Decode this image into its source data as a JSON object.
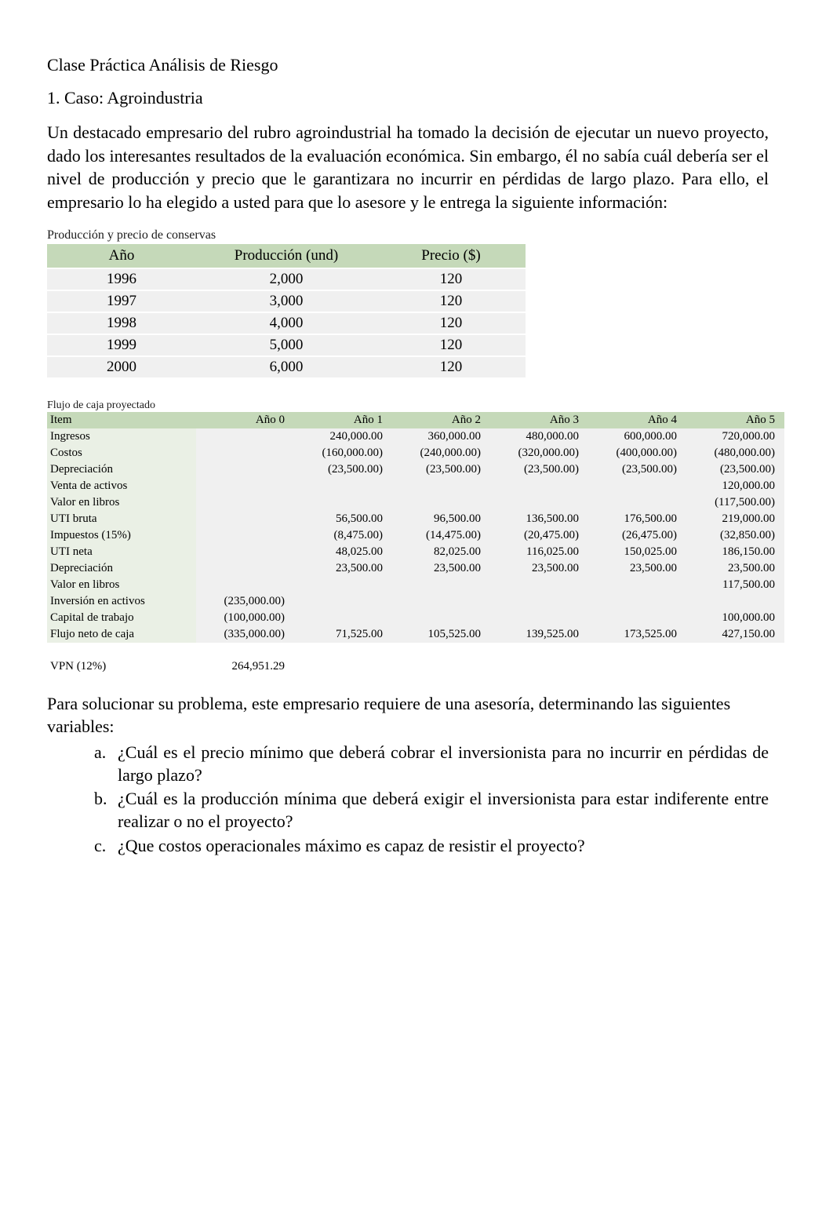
{
  "title": "Clase Práctica Análisis de Riesgo",
  "case_heading": "1. Caso: Agroindustria",
  "intro": "Un destacado empresario del rubro agroindustrial ha tomado la decisión de ejecutar un nuevo proyecto, dado los interesantes resultados de la evaluación económica. Sin embargo, él no sabía cuál debería ser el nivel de producción y precio que le garantizara no incurrir en pérdidas de largo plazo. Para ello, el empresario lo ha elegido a usted para que lo asesore y le entrega la siguiente información:",
  "prod_table": {
    "title": "Producción y precio de conservas",
    "headers": {
      "year": "Año",
      "prod": "Producción (und)",
      "price": "Precio ($)"
    },
    "rows": [
      {
        "year": "1996",
        "prod": "2,000",
        "price": "120"
      },
      {
        "year": "1997",
        "prod": "3,000",
        "price": "120"
      },
      {
        "year": "1998",
        "prod": "4,000",
        "price": "120"
      },
      {
        "year": "1999",
        "prod": "5,000",
        "price": "120"
      },
      {
        "year": "2000",
        "prod": "6,000",
        "price": "120"
      }
    ],
    "header_bg": "#c5d9b9",
    "cell_bg": "#f0f0f0"
  },
  "flow": {
    "title": "Flujo de caja proyectado",
    "headers": [
      "Item",
      "Año 0",
      "Año 1",
      "Año 2",
      "Año 3",
      "Año 4",
      "Año 5"
    ],
    "rows": [
      {
        "label": "Ingresos",
        "vals": [
          "",
          "240,000.00",
          "360,000.00",
          "480,000.00",
          "600,000.00",
          "720,000.00"
        ]
      },
      {
        "label": "Costos",
        "vals": [
          "",
          "(160,000.00)",
          "(240,000.00)",
          "(320,000.00)",
          "(400,000.00)",
          "(480,000.00)"
        ]
      },
      {
        "label": "Depreciación",
        "vals": [
          "",
          "(23,500.00)",
          "(23,500.00)",
          "(23,500.00)",
          "(23,500.00)",
          "(23,500.00)"
        ]
      },
      {
        "label": "Venta de activos",
        "vals": [
          "",
          "",
          "",
          "",
          "",
          "120,000.00"
        ]
      },
      {
        "label": "Valor en libros",
        "vals": [
          "",
          "",
          "",
          "",
          "",
          "(117,500.00)"
        ]
      },
      {
        "label": "UTI bruta",
        "vals": [
          "",
          "56,500.00",
          "96,500.00",
          "136,500.00",
          "176,500.00",
          "219,000.00"
        ]
      },
      {
        "label": "Impuestos (15%)",
        "vals": [
          "",
          "(8,475.00)",
          "(14,475.00)",
          "(20,475.00)",
          "(26,475.00)",
          "(32,850.00)"
        ]
      },
      {
        "label": "UTI neta",
        "vals": [
          "",
          "48,025.00",
          "82,025.00",
          "116,025.00",
          "150,025.00",
          "186,150.00"
        ]
      },
      {
        "label": "Depreciación",
        "vals": [
          "",
          "23,500.00",
          "23,500.00",
          "23,500.00",
          "23,500.00",
          "23,500.00"
        ]
      },
      {
        "label": "Valor en libros",
        "vals": [
          "",
          "",
          "",
          "",
          "",
          "117,500.00"
        ]
      },
      {
        "label": "Inversión en activos",
        "vals": [
          "(235,000.00)",
          "",
          "",
          "",
          "",
          ""
        ]
      },
      {
        "label": "Capital de trabajo",
        "vals": [
          "(100,000.00)",
          "",
          "",
          "",
          "",
          "100,000.00"
        ]
      },
      {
        "label": "Flujo neto de caja",
        "vals": [
          "(335,000.00)",
          "71,525.00",
          "105,525.00",
          "139,525.00",
          "173,525.00",
          "427,150.00"
        ]
      }
    ],
    "header_bg": "#c5d9b9",
    "label_bg": "#eaf0e5",
    "num_bg": "#f0f0f0"
  },
  "vpn": {
    "label": "VPN (12%)",
    "value": "264,951.29"
  },
  "outro": "Para solucionar su problema, este empresario requiere de una asesoría, determinando las siguientes variables:",
  "questions": [
    {
      "marker": "a.",
      "text": "¿Cuál es el precio mínimo que deberá cobrar el inversionista para no incurrir en pérdidas de largo plazo?"
    },
    {
      "marker": "b.",
      "text": "¿Cuál es la producción mínima que deberá exigir el inversionista para estar indiferente entre realizar o no el proyecto?"
    },
    {
      "marker": "c.",
      "text": "¿Que costos operacionales máximo es capaz de resistir el proyecto?"
    }
  ]
}
